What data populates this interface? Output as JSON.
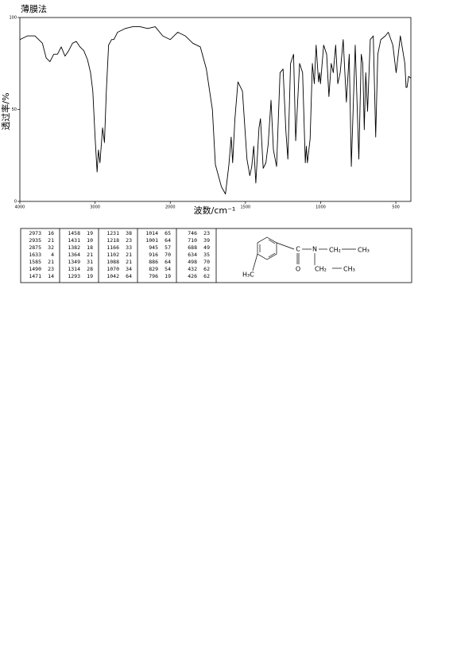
{
  "chart_data": {
    "type": "line",
    "title": "薄膜法",
    "x_label": "波数/cm⁻¹",
    "y_label": "透过率/%",
    "xlim": [
      4000,
      400
    ],
    "xticks": [
      4000,
      3000,
      2000,
      1500,
      1000,
      500
    ],
    "x_scale_break": 2000,
    "x_scale_factor_below_break": 2,
    "ylim": [
      0,
      100
    ],
    "yticks": [
      0,
      50,
      100
    ],
    "color": "#000000",
    "x": [
      4000,
      3900,
      3800,
      3700,
      3650,
      3600,
      3550,
      3500,
      3450,
      3400,
      3350,
      3300,
      3250,
      3200,
      3150,
      3100,
      3060,
      3030,
      3000,
      2973,
      2955,
      2935,
      2900,
      2875,
      2850,
      2820,
      2780,
      2750,
      2700,
      2600,
      2500,
      2400,
      2300,
      2200,
      2100,
      2000,
      1950,
      1900,
      1850,
      1800,
      1760,
      1720,
      1700,
      1660,
      1633,
      1610,
      1595,
      1585,
      1570,
      1550,
      1520,
      1490,
      1471,
      1458,
      1445,
      1431,
      1410,
      1400,
      1382,
      1364,
      1349,
      1330,
      1314,
      1293,
      1270,
      1250,
      1231,
      1218,
      1200,
      1180,
      1166,
      1140,
      1120,
      1102,
      1095,
      1088,
      1070,
      1055,
      1042,
      1030,
      1014,
      1007,
      1001,
      980,
      960,
      945,
      930,
      916,
      900,
      886,
      870,
      850,
      829,
      810,
      796,
      780,
      770,
      746,
      730,
      720,
      710,
      700,
      688,
      670,
      650,
      634,
      620,
      600,
      570,
      550,
      520,
      498,
      470,
      440,
      432,
      426,
      415,
      400
    ],
    "values": [
      88,
      90,
      90,
      86,
      78,
      76,
      80,
      80,
      84,
      79,
      82,
      86,
      87,
      84,
      82,
      77,
      70,
      60,
      35,
      16,
      28,
      21,
      40,
      32,
      60,
      85,
      88,
      88,
      92,
      94,
      95,
      95,
      94,
      95,
      90,
      88,
      92,
      90,
      86,
      84,
      72,
      50,
      20,
      8,
      4,
      20,
      35,
      21,
      45,
      65,
      60,
      23,
      14,
      19,
      30,
      10,
      40,
      45,
      18,
      21,
      31,
      55,
      28,
      19,
      70,
      72,
      38,
      23,
      75,
      80,
      33,
      75,
      70,
      21,
      30,
      21,
      34,
      75,
      64,
      85,
      65,
      70,
      64,
      85,
      80,
      57,
      75,
      70,
      85,
      64,
      70,
      88,
      54,
      80,
      19,
      60,
      85,
      23,
      80,
      75,
      39,
      70,
      49,
      88,
      90,
      35,
      80,
      88,
      90,
      92,
      85,
      70,
      90,
      75,
      62,
      62,
      68,
      67
    ]
  },
  "peak_table": {
    "columns": [
      [
        [
          2973,
          16
        ],
        [
          2935,
          21
        ],
        [
          2875,
          32
        ],
        [
          1633,
          4
        ],
        [
          1585,
          21
        ],
        [
          1490,
          23
        ],
        [
          1471,
          14
        ]
      ],
      [
        [
          1458,
          19
        ],
        [
          1431,
          10
        ],
        [
          1382,
          18
        ],
        [
          1364,
          21
        ],
        [
          1349,
          31
        ],
        [
          1314,
          28
        ],
        [
          1293,
          19
        ]
      ],
      [
        [
          1231,
          38
        ],
        [
          1218,
          23
        ],
        [
          1166,
          33
        ],
        [
          1102,
          21
        ],
        [
          1088,
          21
        ],
        [
          1070,
          34
        ],
        [
          1042,
          64
        ]
      ],
      [
        [
          1014,
          65
        ],
        [
          1001,
          64
        ],
        [
          945,
          57
        ],
        [
          916,
          70
        ],
        [
          886,
          64
        ],
        [
          829,
          54
        ],
        [
          796,
          19
        ]
      ],
      [
        [
          746,
          23
        ],
        [
          710,
          39
        ],
        [
          688,
          49
        ],
        [
          634,
          35
        ],
        [
          498,
          70
        ],
        [
          432,
          62
        ],
        [
          426,
          62
        ]
      ]
    ]
  },
  "structure": {
    "labels": [
      "C",
      "N",
      "CH₂",
      "CH₃",
      "O",
      "CH₂",
      "CH₃",
      "H₃C"
    ]
  }
}
